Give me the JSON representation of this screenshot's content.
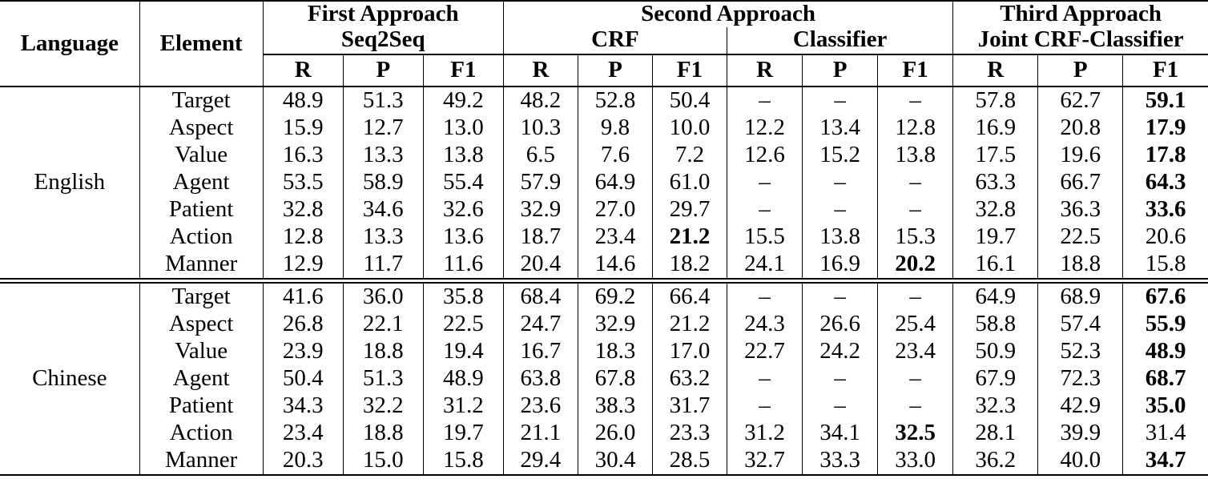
{
  "table": {
    "header": {
      "language": "Language",
      "element": "Element",
      "groups": [
        {
          "line1": "First Approach",
          "line2": "Seq2Seq"
        },
        {
          "line1": "Second Approach",
          "subgroups": [
            "CRF",
            "Classifier"
          ]
        },
        {
          "line1": "Third Approach",
          "line2": "Joint CRF-Classifier"
        }
      ],
      "metric_labels": [
        "R",
        "P",
        "F1"
      ]
    },
    "sections": [
      {
        "language": "English",
        "rows": [
          {
            "element": "Target",
            "values": [
              "48.9",
              "51.3",
              "49.2",
              "48.2",
              "52.8",
              "50.4",
              "–",
              "–",
              "–",
              "57.8",
              "62.7",
              "59.1"
            ],
            "bold": [
              11
            ]
          },
          {
            "element": "Aspect",
            "values": [
              "15.9",
              "12.7",
              "13.0",
              "10.3",
              "9.8",
              "10.0",
              "12.2",
              "13.4",
              "12.8",
              "16.9",
              "20.8",
              "17.9"
            ],
            "bold": [
              11
            ]
          },
          {
            "element": "Value",
            "values": [
              "16.3",
              "13.3",
              "13.8",
              "6.5",
              "7.6",
              "7.2",
              "12.6",
              "15.2",
              "13.8",
              "17.5",
              "19.6",
              "17.8"
            ],
            "bold": [
              11
            ]
          },
          {
            "element": "Agent",
            "values": [
              "53.5",
              "58.9",
              "55.4",
              "57.9",
              "64.9",
              "61.0",
              "–",
              "–",
              "–",
              "63.3",
              "66.7",
              "64.3"
            ],
            "bold": [
              11
            ]
          },
          {
            "element": "Patient",
            "values": [
              "32.8",
              "34.6",
              "32.6",
              "32.9",
              "27.0",
              "29.7",
              "–",
              "–",
              "–",
              "32.8",
              "36.3",
              "33.6"
            ],
            "bold": [
              11
            ]
          },
          {
            "element": "Action",
            "values": [
              "12.8",
              "13.3",
              "13.6",
              "18.7",
              "23.4",
              "21.2",
              "15.5",
              "13.8",
              "15.3",
              "19.7",
              "22.5",
              "20.6"
            ],
            "bold": [
              5
            ]
          },
          {
            "element": "Manner",
            "values": [
              "12.9",
              "11.7",
              "11.6",
              "20.4",
              "14.6",
              "18.2",
              "24.1",
              "16.9",
              "20.2",
              "16.1",
              "18.8",
              "15.8"
            ],
            "bold": [
              8
            ]
          }
        ]
      },
      {
        "language": "Chinese",
        "rows": [
          {
            "element": "Target",
            "values": [
              "41.6",
              "36.0",
              "35.8",
              "68.4",
              "69.2",
              "66.4",
              "–",
              "–",
              "–",
              "64.9",
              "68.9",
              "67.6"
            ],
            "bold": [
              11
            ]
          },
          {
            "element": "Aspect",
            "values": [
              "26.8",
              "22.1",
              "22.5",
              "24.7",
              "32.9",
              "21.2",
              "24.3",
              "26.6",
              "25.4",
              "58.8",
              "57.4",
              "55.9"
            ],
            "bold": [
              11
            ]
          },
          {
            "element": "Value",
            "values": [
              "23.9",
              "18.8",
              "19.4",
              "16.7",
              "18.3",
              "17.0",
              "22.7",
              "24.2",
              "23.4",
              "50.9",
              "52.3",
              "48.9"
            ],
            "bold": [
              11
            ]
          },
          {
            "element": "Agent",
            "values": [
              "50.4",
              "51.3",
              "48.9",
              "63.8",
              "67.8",
              "63.2",
              "–",
              "–",
              "–",
              "67.9",
              "72.3",
              "68.7"
            ],
            "bold": [
              11
            ]
          },
          {
            "element": "Patient",
            "values": [
              "34.3",
              "32.2",
              "31.2",
              "23.6",
              "38.3",
              "31.7",
              "–",
              "–",
              "–",
              "32.3",
              "42.9",
              "35.0"
            ],
            "bold": [
              11
            ]
          },
          {
            "element": "Action",
            "values": [
              "23.4",
              "18.8",
              "19.7",
              "21.1",
              "26.0",
              "23.3",
              "31.2",
              "34.1",
              "32.5",
              "28.1",
              "39.9",
              "31.4"
            ],
            "bold": [
              8
            ]
          },
          {
            "element": "Manner",
            "values": [
              "20.3",
              "15.0",
              "15.8",
              "29.4",
              "30.4",
              "28.5",
              "32.7",
              "33.3",
              "33.0",
              "36.2",
              "40.0",
              "34.7"
            ],
            "bold": [
              11
            ]
          }
        ]
      }
    ],
    "colors": {
      "text": "#000000",
      "background": "#ffffff"
    }
  }
}
